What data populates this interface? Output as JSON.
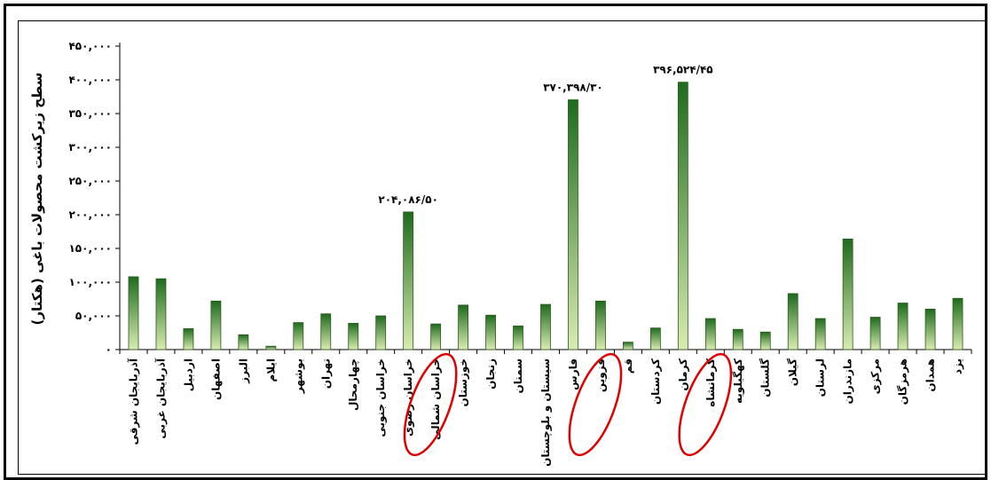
{
  "chart_data": {
    "type": "bar",
    "ylabel": "سطح زیرکشت محصولات باغی (هکتار)",
    "ylim": [
      0,
      450000
    ],
    "y_ticks": [
      0,
      50000,
      100000,
      150000,
      200000,
      250000,
      300000,
      350000,
      400000,
      450000
    ],
    "y_tick_labels": [
      "۰",
      "۵۰,۰۰۰",
      "۱۰۰,۰۰۰",
      "۱۵۰,۰۰۰",
      "۲۰۰,۰۰۰",
      "۲۵۰,۰۰۰",
      "۳۰۰,۰۰۰",
      "۳۵۰,۰۰۰",
      "۴۰۰,۰۰۰",
      "۴۵۰,۰۰۰"
    ],
    "categories": [
      "آذربایجان شرقی",
      "آذربایجان غربی",
      "اردبیل",
      "اصفهان",
      "البرز",
      "ایلام",
      "بوشهر",
      "تهران",
      "چهارمحال",
      "خراسان جنوبی",
      "خراسان رضوی",
      "خراسان شمالی",
      "خوزستان",
      "زنجان",
      "سمنان",
      "سیستان و بلوچستان",
      "فارس",
      "قزوین",
      "قم",
      "کردستان",
      "کرمان",
      "کرمانشاه",
      "کهگیلویه",
      "گلستان",
      "گیلان",
      "لرستان",
      "مازندران",
      "مرکزی",
      "هرمزگان",
      "همدان",
      "یزد"
    ],
    "values": [
      108000,
      105000,
      31000,
      72000,
      22000,
      5000,
      40000,
      53000,
      39000,
      50000,
      204086.5,
      38000,
      66000,
      51000,
      35000,
      67000,
      370398.3,
      72000,
      11000,
      32000,
      396524.45,
      46000,
      30000,
      26000,
      83000,
      46000,
      164000,
      48000,
      69000,
      60000,
      76000
    ],
    "data_labels": [
      {
        "index": 10,
        "text": "۲۰۴,۰۸۶/۵۰"
      },
      {
        "index": 16,
        "text": "۳۷۰,۳۹۸/۳۰"
      },
      {
        "index": 20,
        "text": "۳۹۶,۵۲۴/۴۵"
      }
    ],
    "highlighted_categories": [
      11,
      17,
      21
    ],
    "colors": {
      "bar_top": "#1e6b1e",
      "bar_bottom": "#d9ecb0",
      "highlight": "#e00000"
    },
    "grid": false,
    "legend": "none"
  }
}
